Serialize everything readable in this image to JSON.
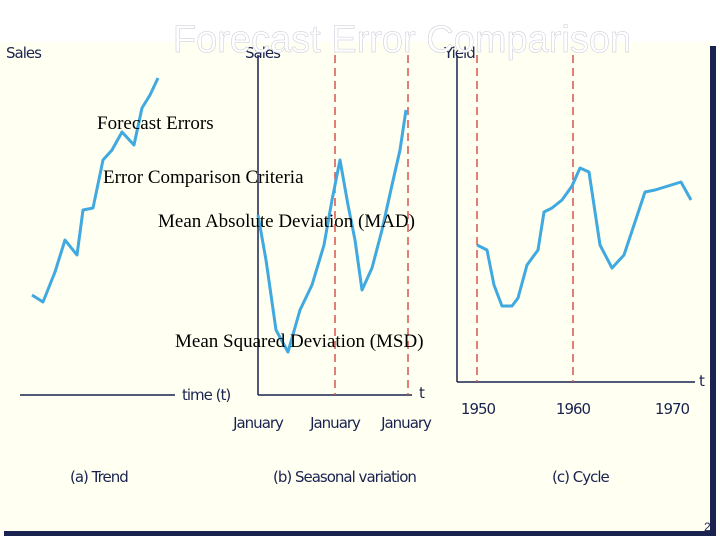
{
  "title": "Forecast Error Comparison",
  "bullets": [
    "Forecast Errors",
    "Error Comparison Criteria",
    "Mean Absolute Deviation (MAD)",
    "Mean Squared Deviation (MSD)"
  ],
  "figure": {
    "panels": [
      {
        "y_label": "Sales",
        "x_label": "time (t)",
        "caption": "(a) Trend"
      },
      {
        "y_label": "Sales",
        "x_label": "t",
        "x_labels": [
          "January",
          "January",
          "January"
        ],
        "caption": "(b) Seasonal variation"
      },
      {
        "y_label": "Yield",
        "x_label": "t",
        "x_labels": [
          "1950",
          "1960",
          "1970"
        ],
        "caption": "(c) Cycle"
      }
    ]
  },
  "page_number": "2"
}
